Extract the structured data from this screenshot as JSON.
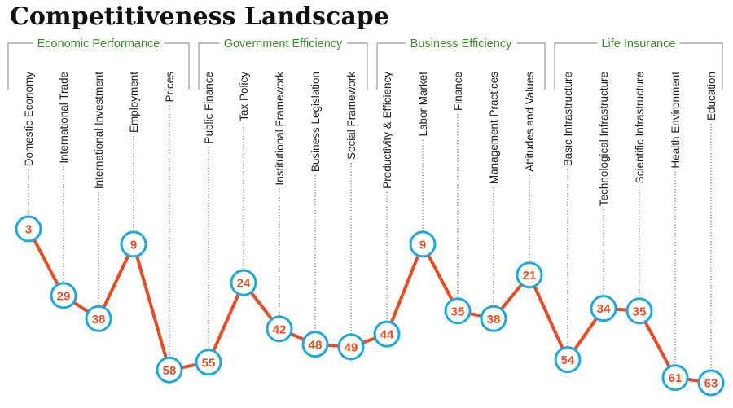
{
  "chart_data": {
    "type": "line",
    "title": "Competitiveness Landscape",
    "groups": [
      {
        "name": "Economic Performance",
        "categories": [
          "Domestic Economy",
          "International Trade",
          "International Investment",
          "Employment",
          "Prices"
        ]
      },
      {
        "name": "Government Efficiency",
        "categories": [
          "Public Finance",
          "Tax Policy",
          "Institutional Framework",
          "Business Legislation",
          "Social Framework"
        ]
      },
      {
        "name": "Business Efficiency",
        "categories": [
          "Productivity & Efficiency",
          "Labor Market",
          "Finance",
          "Management Practices",
          "Attitudes and Values"
        ]
      },
      {
        "name": "Life Insurance",
        "categories": [
          "Basic Infrastructure",
          "Technological Infrastructure",
          "Scientific  Infrastructure",
          "Health Environment",
          "Education"
        ]
      }
    ],
    "categories": [
      "Domestic Economy",
      "International Trade",
      "International Investment",
      "Employment",
      "Prices",
      "Public Finance",
      "Tax Policy",
      "Institutional Framework",
      "Business Legislation",
      "Social Framework",
      "Productivity & Efficiency",
      "Labor Market",
      "Finance",
      "Management Practices",
      "Attitudes and Values",
      "Basic Infrastructure",
      "Technological Infrastructure",
      "Scientific  Infrastructure",
      "Health Environment",
      "Education"
    ],
    "values": [
      3,
      29,
      38,
      9,
      58,
      55,
      24,
      42,
      48,
      49,
      44,
      9,
      35,
      38,
      21,
      54,
      34,
      35,
      61,
      63
    ],
    "y_axis": "rank (lower value drawn higher)",
    "ylim": [
      63,
      3
    ],
    "xlabel": "",
    "ylabel": "",
    "grid": false,
    "legend": "none"
  },
  "colors": {
    "line": "#e34e26",
    "marker_stroke": "#1ea8dd",
    "marker_fill": "#ffffff",
    "value_text": "#e34e26",
    "group_text": "#3f8a2e",
    "bracket": "#999999",
    "leader": "#555555",
    "title": "#111111"
  }
}
